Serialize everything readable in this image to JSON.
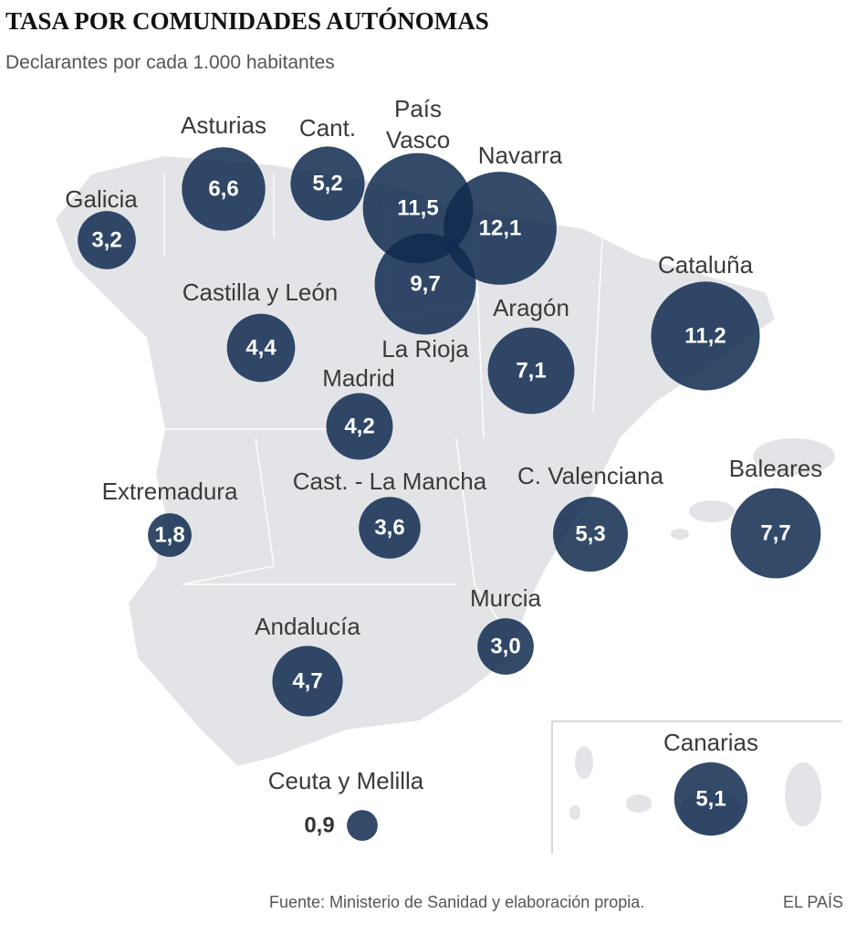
{
  "title": "TASA POR COMUNIDADES AUTÓNOMAS",
  "subtitle": "Declarantes por cada 1.000 habitantes",
  "regions": [
    {
      "name": "Galicia",
      "value": 3.2,
      "value_label": "3,2"
    },
    {
      "name": "Asturias",
      "value": 6.6,
      "value_label": "6,6"
    },
    {
      "name": "Cant.",
      "value": 5.2,
      "value_label": "5,2"
    },
    {
      "name": "País Vasco",
      "value": 11.5,
      "value_label": "11,5"
    },
    {
      "name": "Navarra",
      "value": 12.1,
      "value_label": "12,1"
    },
    {
      "name": "Castilla y León",
      "value": 4.4,
      "value_label": "4,4"
    },
    {
      "name": "La Rioja",
      "value": 9.7,
      "value_label": "9,7"
    },
    {
      "name": "Aragón",
      "value": 7.1,
      "value_label": "7,1"
    },
    {
      "name": "Cataluña",
      "value": 11.2,
      "value_label": "11,2"
    },
    {
      "name": "Madrid",
      "value": 4.2,
      "value_label": "4,2"
    },
    {
      "name": "Extremadura",
      "value": 1.8,
      "value_label": "1,8"
    },
    {
      "name": "Cast. - La Mancha",
      "value": 3.6,
      "value_label": "3,6"
    },
    {
      "name": "C. Valenciana",
      "value": 5.3,
      "value_label": "5,3"
    },
    {
      "name": "Baleares",
      "value": 7.7,
      "value_label": "7,7"
    },
    {
      "name": "Murcia",
      "value": 3.0,
      "value_label": "3,0"
    },
    {
      "name": "Andalucía",
      "value": 4.7,
      "value_label": "4,7"
    },
    {
      "name": "Canarias",
      "value": 5.1,
      "value_label": "5,1"
    },
    {
      "name": "Ceuta y Melilla",
      "value": 0.9,
      "value_label": "0,9"
    }
  ],
  "source": "Fuente: Ministerio de Sanidad y elaboración propia.",
  "brand": "EL PAÍS"
}
